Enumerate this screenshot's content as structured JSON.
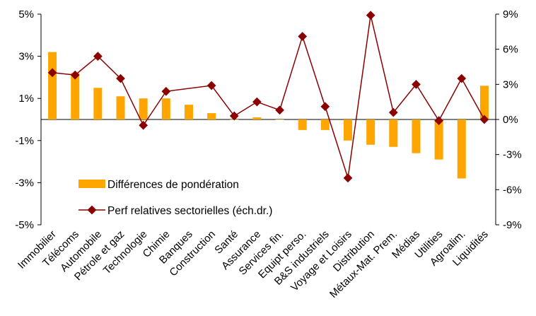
{
  "chart_data": {
    "type": "bar",
    "categories": [
      "Immobilier",
      "Télécoms",
      "Automobile",
      "Pétrole et gaz",
      "Technologie",
      "Chimie",
      "Banques",
      "Construction",
      "Santé",
      "Assurance",
      "Services fin.",
      "Equipt perso.",
      "B&S industriels",
      "Voyage et Loisirs",
      "Distribution",
      "Métaux-Mat. Prem.",
      "Médias",
      "Utilities",
      "Agroalim.",
      "Liquidités"
    ],
    "series": [
      {
        "name": "Différences de pondération",
        "type": "bar",
        "axis": "left",
        "color": "#FFA500",
        "values": [
          3.2,
          2.2,
          1.5,
          1.1,
          1.0,
          1.0,
          0.7,
          0.3,
          0.0,
          0.1,
          0.0,
          -0.5,
          -0.5,
          -1.0,
          -1.2,
          -1.3,
          -1.6,
          -1.9,
          -2.8,
          1.6
        ]
      },
      {
        "name": "Perf relatives sectorielles (éch.dr.)",
        "type": "line",
        "axis": "right",
        "color": "#8B0000",
        "values": [
          4.0,
          3.8,
          5.4,
          3.5,
          -0.5,
          2.4,
          null,
          2.9,
          0.3,
          1.5,
          0.8,
          7.1,
          1.1,
          -5.0,
          8.9,
          0.6,
          3.0,
          -0.1,
          3.5,
          0.0
        ]
      }
    ],
    "y_left": {
      "ylim": [
        -5,
        5
      ],
      "ticks": [
        5,
        3,
        1,
        -1,
        -3,
        -5
      ],
      "tick_labels": [
        "5%",
        "3%",
        "1%",
        "-1%",
        "-3%",
        "-5%"
      ]
    },
    "y_right": {
      "ylim": [
        -9,
        9
      ],
      "ticks": [
        9,
        6,
        3,
        0,
        -3,
        -6,
        -9
      ],
      "tick_labels": [
        "9%",
        "6%",
        "3%",
        "0%",
        "-3%",
        "-6%",
        "-9%"
      ]
    },
    "title": "",
    "xlabel": "",
    "ylabel": "",
    "grid": false,
    "legend": "lower-left inside plot"
  }
}
